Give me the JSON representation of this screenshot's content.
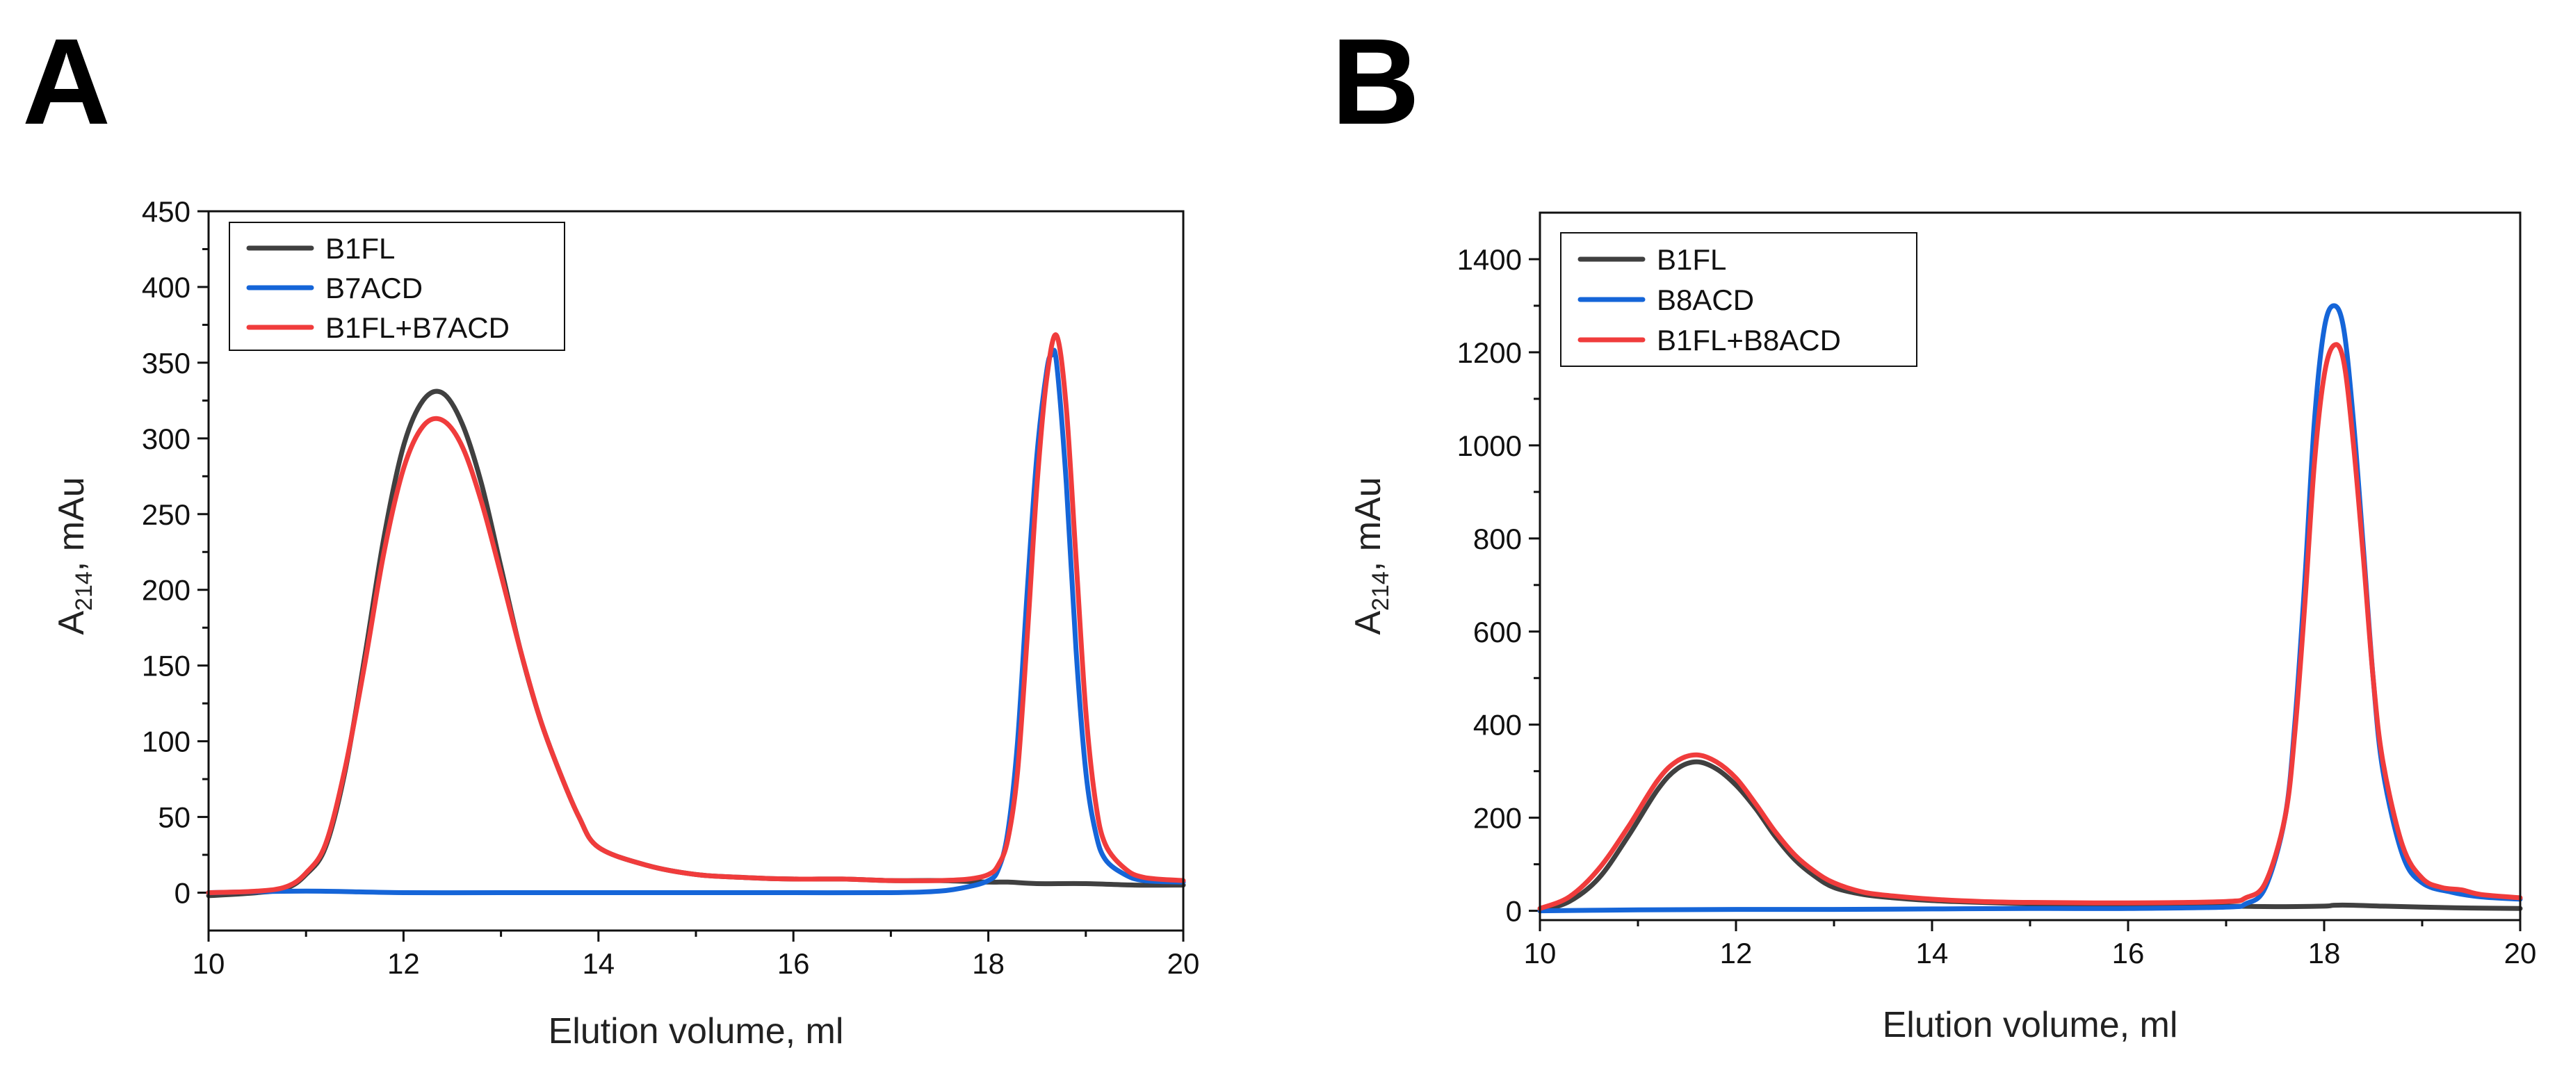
{
  "colors": {
    "series_dark": "#404040",
    "series_blue": "#1565d8",
    "series_red": "#f03c3c"
  },
  "chart_data": [
    {
      "panel": "A",
      "type": "line",
      "title": "",
      "xlabel": "Elution volume, ml",
      "ylabel": {
        "main": "A",
        "sub": "214",
        "rest": ", mAu"
      },
      "xlim": [
        10,
        20
      ],
      "ylim": [
        -25,
        450
      ],
      "xticks": [
        10,
        12,
        14,
        16,
        18,
        20
      ],
      "yticks": [
        0,
        50,
        100,
        150,
        200,
        250,
        300,
        350,
        400,
        450
      ],
      "legend_position": "top-left",
      "series": [
        {
          "name": "B1FL",
          "color": "#404040",
          "x": [
            10,
            10.5,
            10.8,
            11,
            11.2,
            11.4,
            11.6,
            11.8,
            12,
            12.2,
            12.4,
            12.6,
            12.8,
            13,
            13.2,
            13.4,
            13.6,
            13.8,
            14,
            14.5,
            15,
            15.5,
            16,
            16.5,
            17,
            17.5,
            18,
            18.2,
            18.5,
            19,
            19.5,
            20
          ],
          "y": [
            -2,
            0,
            3,
            12,
            30,
            80,
            155,
            235,
            295,
            325,
            330,
            310,
            270,
            215,
            160,
            115,
            80,
            50,
            30,
            18,
            12,
            10,
            9,
            9,
            8,
            8,
            7,
            7,
            6,
            6,
            5,
            5
          ]
        },
        {
          "name": "B7ACD",
          "color": "#1565d8",
          "x": [
            10,
            11,
            12,
            13,
            14,
            15,
            16,
            17,
            17.5,
            17.8,
            18,
            18.1,
            18.2,
            18.3,
            18.4,
            18.5,
            18.6,
            18.65,
            18.7,
            18.8,
            18.9,
            19,
            19.1,
            19.2,
            19.4,
            19.6,
            20
          ],
          "y": [
            0,
            1,
            0,
            0,
            0,
            0,
            0,
            0,
            1,
            4,
            8,
            15,
            40,
            100,
            200,
            290,
            345,
            355,
            350,
            270,
            160,
            80,
            40,
            22,
            12,
            8,
            7
          ]
        },
        {
          "name": "B1FL+B7ACD",
          "color": "#f03c3c",
          "x": [
            10,
            10.5,
            10.8,
            11,
            11.2,
            11.4,
            11.6,
            11.8,
            12,
            12.2,
            12.4,
            12.6,
            12.8,
            13,
            13.2,
            13.4,
            13.6,
            13.8,
            14,
            14.5,
            15,
            15.5,
            16,
            16.5,
            17,
            17.5,
            17.8,
            18,
            18.1,
            18.2,
            18.3,
            18.4,
            18.5,
            18.6,
            18.7,
            18.8,
            18.9,
            19,
            19.1,
            19.2,
            19.4,
            19.6,
            20
          ],
          "y": [
            0,
            1,
            4,
            13,
            32,
            82,
            150,
            225,
            280,
            308,
            312,
            295,
            258,
            210,
            160,
            115,
            80,
            50,
            30,
            18,
            12,
            10,
            9,
            9,
            8,
            8,
            9,
            12,
            18,
            35,
            80,
            170,
            270,
            340,
            368,
            320,
            220,
            120,
            60,
            32,
            16,
            10,
            8
          ]
        }
      ]
    },
    {
      "panel": "B",
      "type": "line",
      "title": "",
      "xlabel": "Elution volume, ml",
      "ylabel": {
        "main": "A",
        "sub": "214",
        "rest": ", mAu"
      },
      "xlim": [
        10,
        20
      ],
      "ylim": [
        -20,
        1500
      ],
      "xticks": [
        10,
        12,
        14,
        16,
        18,
        20
      ],
      "yticks": [
        0,
        200,
        400,
        600,
        800,
        1000,
        1200,
        1400
      ],
      "legend_position": "top-left",
      "series": [
        {
          "name": "B1FL",
          "color": "#404040",
          "x": [
            10,
            10.3,
            10.6,
            10.9,
            11.2,
            11.4,
            11.6,
            11.8,
            12,
            12.2,
            12.4,
            12.6,
            12.8,
            13,
            13.3,
            13.6,
            14,
            14.5,
            15,
            16,
            17,
            17.5,
            18,
            18.1,
            18.3,
            18.6,
            19,
            19.5,
            20
          ],
          "y": [
            0,
            20,
            70,
            160,
            260,
            305,
            320,
            305,
            270,
            220,
            160,
            110,
            75,
            50,
            35,
            28,
            22,
            18,
            15,
            12,
            10,
            9,
            10,
            12,
            12,
            10,
            8,
            6,
            5
          ]
        },
        {
          "name": "B8ACD",
          "color": "#1565d8",
          "x": [
            10,
            11,
            12,
            13,
            14,
            15,
            16,
            17,
            17.2,
            17.4,
            17.6,
            17.7,
            17.8,
            17.9,
            18,
            18.1,
            18.2,
            18.3,
            18.4,
            18.5,
            18.6,
            18.8,
            19,
            19.3,
            19.6,
            20
          ],
          "y": [
            0,
            2,
            3,
            3,
            4,
            5,
            5,
            8,
            15,
            50,
            200,
            400,
            700,
            1050,
            1250,
            1300,
            1250,
            1050,
            780,
            500,
            300,
            120,
            60,
            40,
            30,
            25
          ]
        },
        {
          "name": "B1FL+B8ACD",
          "color": "#f03c3c",
          "x": [
            10,
            10.3,
            10.6,
            10.9,
            11.2,
            11.4,
            11.6,
            11.8,
            12,
            12.2,
            12.4,
            12.6,
            12.8,
            13,
            13.3,
            13.6,
            14,
            14.5,
            15,
            16,
            17,
            17.2,
            17.4,
            17.6,
            17.7,
            17.8,
            17.9,
            18,
            18.1,
            18.2,
            18.3,
            18.4,
            18.5,
            18.6,
            18.8,
            19,
            19.2,
            19.4,
            19.6,
            20
          ],
          "y": [
            5,
            30,
            90,
            180,
            280,
            322,
            335,
            320,
            285,
            230,
            170,
            120,
            85,
            60,
            40,
            32,
            25,
            20,
            18,
            17,
            20,
            28,
            60,
            200,
            380,
            650,
            960,
            1150,
            1215,
            1180,
            1000,
            760,
            500,
            320,
            140,
            70,
            50,
            45,
            35,
            28
          ]
        }
      ]
    }
  ]
}
